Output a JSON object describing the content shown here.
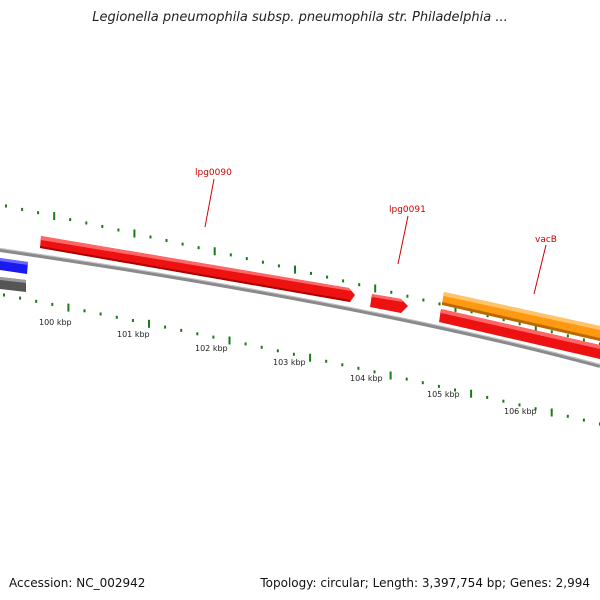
{
  "title": "Legionella pneumophila subsp. pneumophila str. Philadelphia ...",
  "footer": {
    "accession": "Accession: NC_002942",
    "summary": "Topology: circular; Length: 3,397,754 bp; Genes: 2,994"
  },
  "colors": {
    "forward_gene": "#ee1111",
    "reverse_gene": "#ee1111",
    "highlight_gene": "#ff9911",
    "left_gene_blue": "#1a1aee",
    "backbone": "#8a8a8a",
    "tick": "#1a7a1a",
    "label": "#cc0000"
  },
  "scale": {
    "labels": [
      "100 kbp",
      "101 kbp",
      "102 kbp",
      "103 kbp",
      "104 kbp",
      "105 kbp",
      "106 kbp"
    ]
  },
  "genes": [
    {
      "name": "lpg0090",
      "strand": "forward"
    },
    {
      "name": "lpg0091",
      "strand": "forward"
    },
    {
      "name": "vacB",
      "strand": "forward"
    }
  ]
}
